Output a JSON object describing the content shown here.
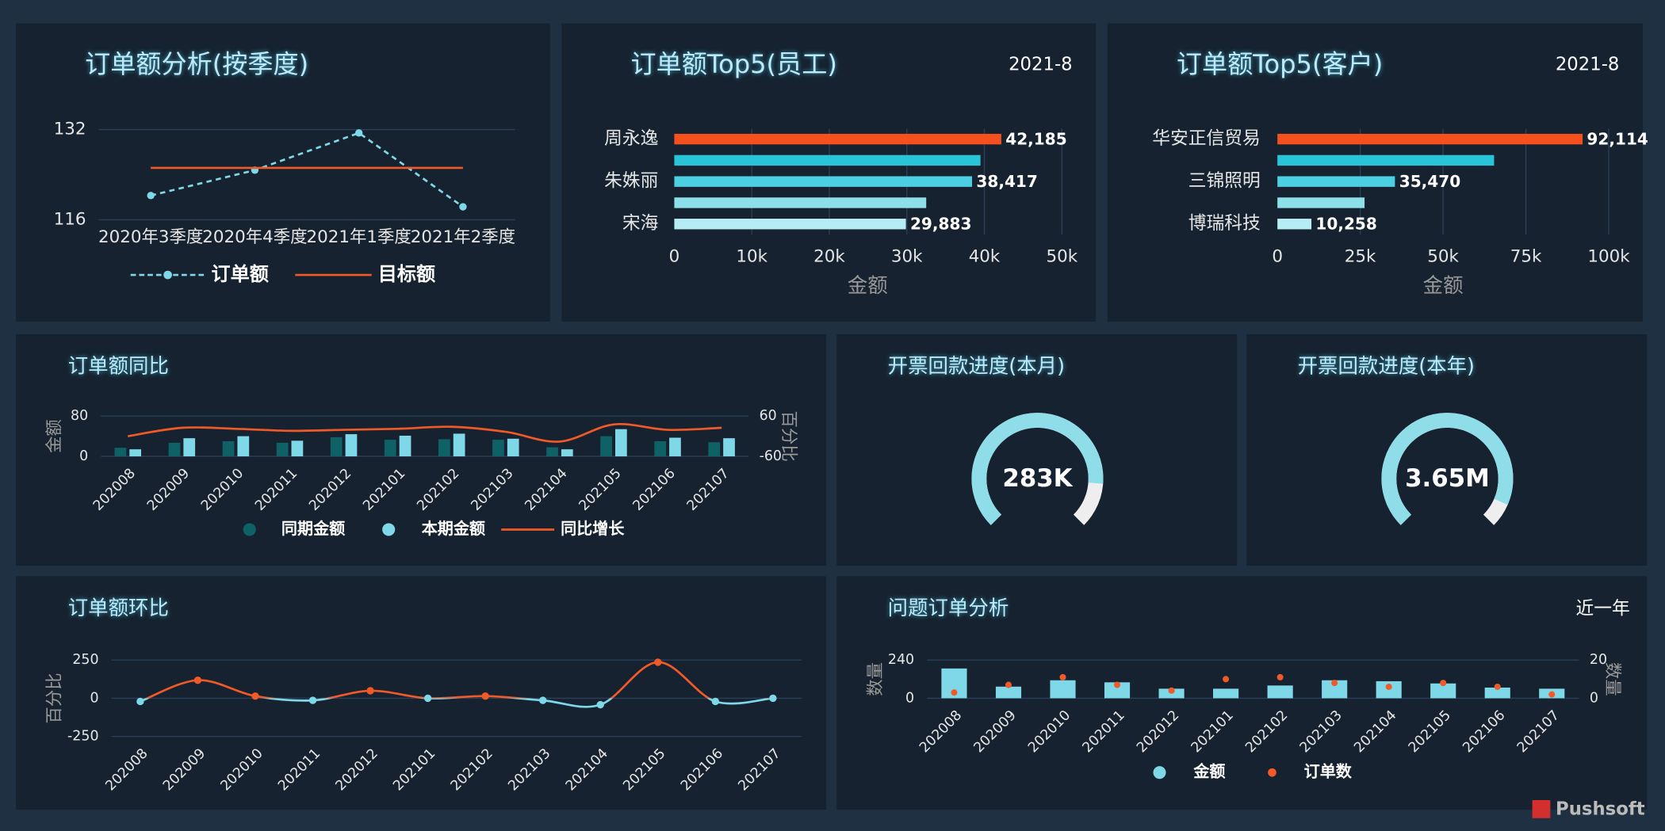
{
  "chart_data": [
    {
      "type": "line",
      "title": "订单额分析(按季度)",
      "categories": [
        "2020年3季度",
        "2020年4季度",
        "2021年1季度",
        "2021年2季度"
      ],
      "series": [
        {
          "name": "订单额",
          "color": "#7fd8e8",
          "dashed": true,
          "markers": true,
          "values": [
            120.3,
            124.8,
            131.4,
            118.3
          ]
        },
        {
          "name": "目标额",
          "color": "#f05a28",
          "values": [
            125.2,
            125.2,
            125.2,
            125.2
          ]
        }
      ],
      "ylim": [
        116,
        132
      ],
      "yticks": [
        116,
        132
      ],
      "grid": true
    },
    {
      "type": "hbar",
      "title": "订单额Top5(员工)",
      "subtitle": "2021-8",
      "categories": [
        "周永逸",
        null,
        "朱姝丽",
        null,
        "宋海"
      ],
      "values": [
        42185,
        39500,
        38417,
        32500,
        29883
      ],
      "value_labels": [
        "42,185",
        null,
        "38,417",
        null,
        "29,883"
      ],
      "colors": [
        "#f4511e",
        "#29c4d8",
        "#4ccfe0",
        "#8ddfea",
        "#b6ecf3"
      ],
      "xlim": [
        0,
        50000
      ],
      "xticks": [
        0,
        {
          "value": 10000,
          "label": "10k"
        },
        {
          "value": 20000,
          "label": "20k"
        },
        {
          "value": 30000,
          "label": "30k"
        },
        {
          "value": 40000,
          "label": "40k"
        },
        {
          "value": 50000,
          "label": "50k"
        }
      ],
      "xlabel": "金额",
      "grid": true
    },
    {
      "type": "hbar",
      "title": "订单额Top5(客户)",
      "subtitle": "2021-8",
      "categories": [
        "华安正信贸易",
        null,
        "三锦照明",
        null,
        "博瑞科技"
      ],
      "values": [
        92114,
        65400,
        35470,
        26300,
        10258
      ],
      "value_labels": [
        "92,114",
        null,
        "35,470",
        null,
        "10,258"
      ],
      "colors": [
        "#f4511e",
        "#29c4d8",
        "#4ccfe0",
        "#8ddfea",
        "#b6ecf3"
      ],
      "xlim": [
        0,
        100000
      ],
      "xticks": [
        0,
        {
          "value": 25000,
          "label": "25k"
        },
        {
          "value": 50000,
          "label": "50k"
        },
        {
          "value": 75000,
          "label": "75k"
        },
        {
          "value": 100000,
          "label": "100k"
        }
      ],
      "xlabel": "金额",
      "grid": true
    },
    {
      "type": "combo",
      "title": "订单额同比",
      "smooth": true,
      "categories": [
        "202008",
        "202009",
        "202010",
        "202011",
        "202012",
        "202101",
        "202102",
        "202103",
        "202104",
        "202105",
        "202106",
        "202107"
      ],
      "series": [
        {
          "name": "同期金额",
          "type": "bar",
          "color": "#0e6266",
          "values": [
            17,
            27,
            30,
            27,
            38,
            33,
            34,
            33,
            18,
            40,
            30,
            28
          ]
        },
        {
          "name": "本期金额",
          "type": "bar",
          "color": "#7fd8e8",
          "values": [
            14,
            36,
            40,
            31,
            44,
            41,
            45,
            35,
            14,
            54,
            37,
            36
          ]
        },
        {
          "name": "同比增长",
          "type": "line",
          "axis": "y2",
          "color": "#f05a28",
          "values": [
            0,
            25,
            22,
            16,
            19,
            22,
            28,
            13,
            -16,
            35,
            19,
            25
          ]
        }
      ],
      "ylim": [
        0,
        80
      ],
      "yticks": [
        0,
        80
      ],
      "y2lim": [
        -60,
        60
      ],
      "y2ticks": [
        -60,
        60
      ],
      "ylabel": "金额",
      "y2label": "百分比",
      "grid": true
    },
    {
      "type": "gauge",
      "title": "开票回款进度(本月)",
      "value_label": "283K",
      "percent": 85
    },
    {
      "type": "gauge",
      "title": "开票回款进度(本年)",
      "value_label": "3.65M",
      "percent": 92
    },
    {
      "type": "line",
      "title": "订单额环比",
      "smooth": true,
      "markers": true,
      "categories": [
        "202008",
        "202009",
        "202010",
        "202011",
        "202012",
        "202101",
        "202102",
        "202103",
        "202104",
        "202105",
        "202106",
        "202107"
      ],
      "values": [
        -21,
        118,
        14,
        -14,
        49,
        0,
        14,
        -14,
        -42,
        236,
        -21,
        0
      ],
      "color_positive": "#f05a28",
      "color_negative": "#7fd8e8",
      "ylim": [
        -250,
        250
      ],
      "yticks": [
        -250,
        0,
        250
      ],
      "ylabel": "百分比",
      "grid": true
    },
    {
      "type": "combo",
      "title": "问题订单分析",
      "subtitle": "近一年",
      "categories": [
        "202008",
        "202009",
        "202010",
        "202011",
        "202012",
        "202101",
        "202102",
        "202103",
        "202104",
        "202105",
        "202106",
        "202107"
      ],
      "series": [
        {
          "name": "金额",
          "type": "bar",
          "color": "#7fd8e8",
          "values": [
            187,
            73,
            113,
            100,
            60,
            60,
            80,
            113,
            107,
            93,
            67,
            60
          ]
        },
        {
          "name": "订单数",
          "type": "scatter",
          "axis": "y2",
          "color": "#f05a28",
          "values": [
            3,
            7,
            11,
            7,
            4,
            10,
            11,
            8,
            6,
            8,
            6,
            2
          ]
        }
      ],
      "ylim": [
        0,
        240
      ],
      "yticks": [
        0,
        240
      ],
      "y2lim": [
        0,
        20
      ],
      "y2ticks": [
        0,
        20
      ],
      "ylabel": "数量",
      "y2label": "数量",
      "grid": true
    }
  ],
  "brand": "Pushsoft"
}
